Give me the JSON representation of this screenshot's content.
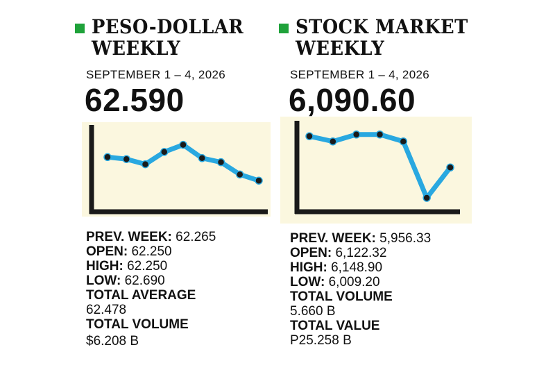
{
  "peso": {
    "title_line1": "PESO-DOLLAR",
    "title_line2": "WEEKLY",
    "date": "SEPTEMBER 1 – 4, 2026",
    "headline": "62.590",
    "prev_week_label": "PREV. WEEK:",
    "prev_week_value": "62.265",
    "open_label": "OPEN:",
    "open_value": "62.250",
    "high_label": "HIGH:",
    "high_value": "62.250",
    "low_label": "LOW:",
    "low_value": "62.690",
    "avg_label": "TOTAL AVERAGE",
    "avg_value": "62.478",
    "volume_label": "TOTAL VOLUME",
    "volume_value": "$6.208 B"
  },
  "psei": {
    "title_line1": "STOCK MARKET",
    "title_line2": "WEEKLY",
    "date": "SEPTEMBER 1 – 4, 2026",
    "headline": "6,090.60",
    "prev_week_label": "PREV. WEEK:",
    "prev_week_value": "5,956.33",
    "open_label": "OPEN:",
    "open_value": "6,122.32",
    "high_label": "HIGH:",
    "high_value": "6,148.90",
    "low_label": "LOW:",
    "low_value": "6,009.20",
    "volume_label": "TOTAL VOLUME",
    "volume_value": "5.660 B",
    "value_label": "TOTAL VALUE",
    "value_value": "P25.258 B"
  },
  "colors": {
    "accent_square": "#1fa23a",
    "line": "#29a8e0",
    "marker": "#1a1a1a",
    "chart_bg": "#fbf7df",
    "axis": "#1a1a1a"
  },
  "chart_data": [
    {
      "type": "line",
      "title": "PESO-DOLLAR WEEKLY",
      "xlabel": "",
      "ylabel": "",
      "grid": false,
      "axis_ticks": false,
      "y": [
        50,
        48,
        43,
        55,
        62,
        49,
        45,
        33,
        27
      ],
      "ylim": [
        0,
        78
      ]
    },
    {
      "type": "line",
      "title": "STOCK MARKET WEEKLY",
      "xlabel": "",
      "ylabel": "",
      "grid": false,
      "axis_ticks": false,
      "y": [
        83,
        77,
        85,
        85,
        77,
        12,
        47
      ],
      "ylim": [
        0,
        100
      ]
    }
  ]
}
